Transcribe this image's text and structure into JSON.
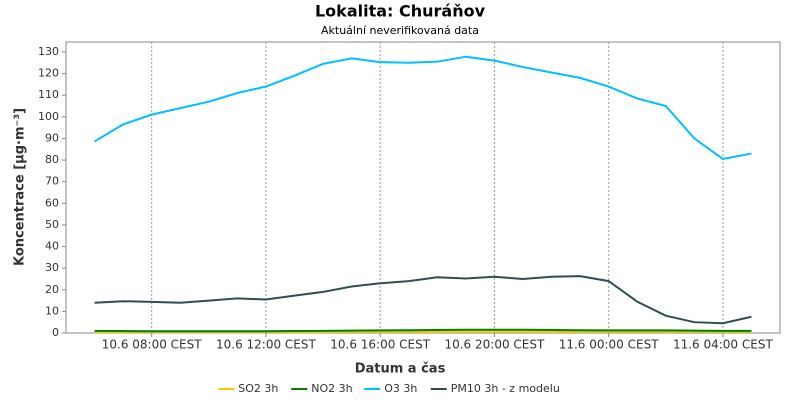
{
  "chart_data": {
    "type": "line",
    "title": "Lokalita: Churáňov",
    "subtitle": "Aktuální neverifikovaná data",
    "x_label": "Datum a čas",
    "y_label": "Koncentrace [µg·m⁻³]",
    "x": [
      6,
      7,
      8,
      9,
      10,
      11,
      12,
      13,
      14,
      15,
      16,
      17,
      18,
      19,
      20,
      21,
      22,
      23,
      24,
      25,
      26,
      27,
      28,
      29
    ],
    "xlim": [
      5,
      30
    ],
    "xticks": [
      {
        "value": 8,
        "label": "10.6 08:00 CEST"
      },
      {
        "value": 12,
        "label": "10.6 12:00 CEST"
      },
      {
        "value": 16,
        "label": "10.6 16:00 CEST"
      },
      {
        "value": 20,
        "label": "10.6 20:00 CEST"
      },
      {
        "value": 24,
        "label": "11.6 00:00 CEST"
      },
      {
        "value": 28,
        "label": "11.6 04:00 CEST"
      }
    ],
    "ylim": [
      0,
      134.6
    ],
    "yticks": [
      0,
      10,
      20,
      30,
      40,
      50,
      60,
      70,
      80,
      90,
      100,
      110,
      120,
      130
    ],
    "grid": "x",
    "legend": "bottom",
    "series": [
      {
        "name": "SO2 3h",
        "color": "#ffc800",
        "values": [
          0.4,
          0.4,
          0.4,
          0.4,
          0.4,
          0.4,
          0.4,
          0.4,
          0.4,
          0.5,
          0.5,
          0.5,
          0.5,
          0.5,
          0.5,
          0.5,
          0.5,
          0.5,
          0.5,
          0.5,
          0.5,
          0.5,
          0.5,
          0.5
        ]
      },
      {
        "name": "NO2 3h",
        "color": "#008000",
        "values": [
          1,
          0.9,
          0.8,
          0.8,
          0.8,
          0.8,
          0.8,
          0.9,
          1,
          1.1,
          1.2,
          1.3,
          1.4,
          1.5,
          1.5,
          1.5,
          1.4,
          1.3,
          1.2,
          1.2,
          1.2,
          1.1,
          1,
          1
        ]
      },
      {
        "name": "O3 3h",
        "color": "#00bfff",
        "values": [
          88.6,
          96.5,
          101,
          104,
          107,
          111,
          114,
          119,
          124.5,
          127,
          125.3,
          125,
          125.5,
          127.8,
          126,
          123,
          120.5,
          118,
          114,
          108.5,
          105,
          90,
          80.5,
          83
        ]
      },
      {
        "name": "PM10 3h - z modelu",
        "color": "#2f4f4f",
        "values": [
          14,
          14.7,
          14.4,
          14,
          15,
          16,
          15.5,
          17.3,
          19,
          21.5,
          23,
          24,
          25.8,
          25.2,
          26,
          25,
          26,
          26.3,
          24,
          14.5,
          8,
          5,
          4.5,
          7.5
        ]
      }
    ]
  }
}
